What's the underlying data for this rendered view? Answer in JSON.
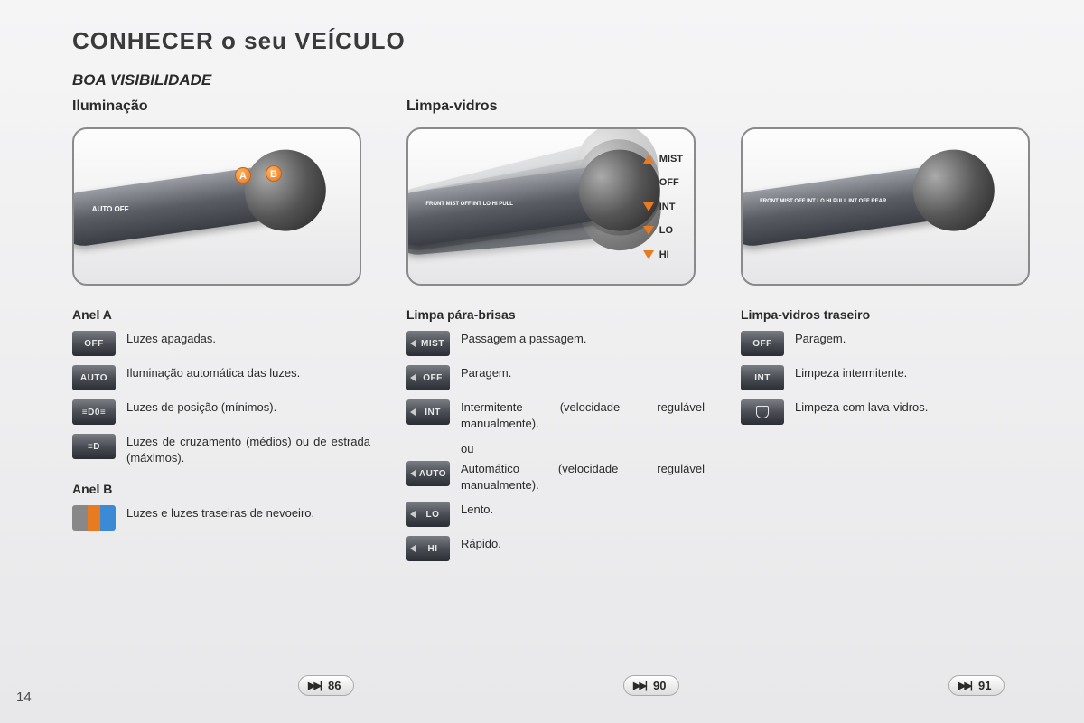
{
  "page_number": "14",
  "main_title": "CONHECER o seu VEÍCULO",
  "section_title": "BOA VISIBILIDADE",
  "columns": {
    "col1": {
      "heading": "Iluminação",
      "markers": {
        "a": "A",
        "b": "B"
      },
      "stalk_text": "AUTO\nOFF",
      "ring_a_title": "Anel A",
      "ring_a_items": [
        {
          "icon": "OFF",
          "text": "Luzes apagadas."
        },
        {
          "icon": "AUTO",
          "text": "Iluminação automática das luzes."
        },
        {
          "icon": "≡D0≡",
          "text": "Luzes de posição (mínimos)."
        },
        {
          "icon": "≡D",
          "text": "Luzes de cruzamento (médios) ou de estrada (máximos)."
        }
      ],
      "ring_b_title": "Anel B",
      "ring_b_items": [
        {
          "icon": "fog",
          "text": "Luzes e luzes traseiras de nevoeiro."
        }
      ],
      "page_ref": "86"
    },
    "col2": {
      "heading": "Limpa-vidros",
      "stalk_text": "FRONT  MIST OFF INT LO HI  PULL",
      "modes": [
        "MIST",
        "OFF",
        "INT",
        "LO",
        "HI"
      ],
      "legend_title": "Limpa pára-brisas",
      "items": [
        {
          "icon": "MIST",
          "text": "Passagem a passagem."
        },
        {
          "icon": "OFF",
          "text": "Paragem."
        },
        {
          "icon": "INT",
          "text": "Intermitente (velocidade regulável manualmente)."
        }
      ],
      "or_label": "ou",
      "items2": [
        {
          "icon": "AUTO",
          "text": "Automático (velocidade regulável manualmente)."
        },
        {
          "icon": "LO",
          "text": "Lento."
        },
        {
          "icon": "HI",
          "text": "Rápido."
        }
      ],
      "page_ref": "90"
    },
    "col3": {
      "heading": "",
      "stalk_text": "FRONT  MIST OFF INT LO HI  PULL    INT OFF  REAR",
      "legend_title": "Limpa-vidros traseiro",
      "items": [
        {
          "icon": "OFF",
          "text": "Paragem."
        },
        {
          "icon": "INT",
          "text": "Limpeza intermitente."
        },
        {
          "icon": "washer",
          "text": "Limpeza com lava-vidros."
        }
      ],
      "page_ref": "91"
    }
  },
  "colors": {
    "accent_orange": "#e87a20",
    "stalk_dark": "#3a3e44",
    "text": "#2a2a2a",
    "bg_top": "#f5f5f6",
    "bg_bottom": "#e8e8ea"
  }
}
